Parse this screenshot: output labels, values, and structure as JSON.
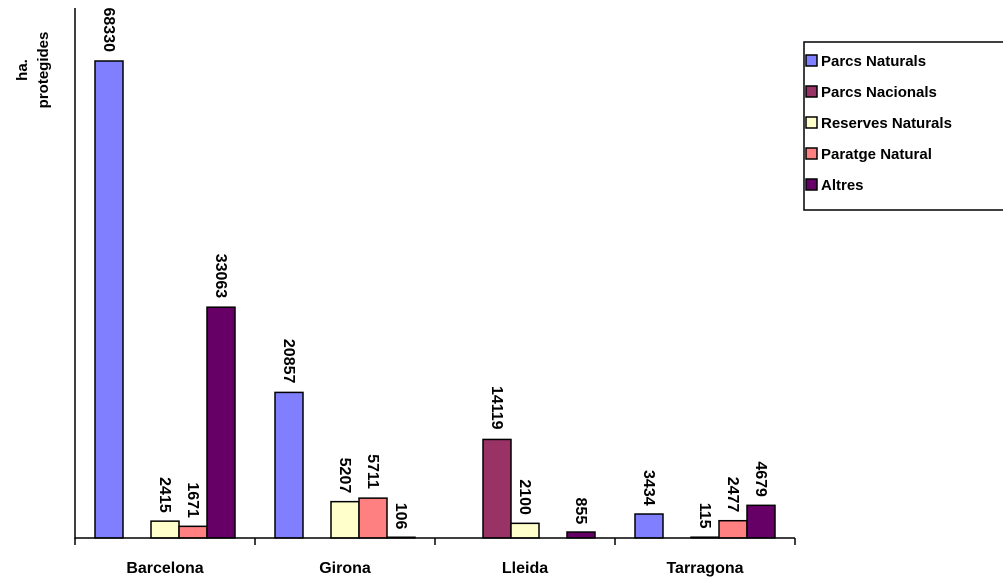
{
  "chart_data": {
    "type": "bar",
    "ylabel": "ha. protegides",
    "ylabel_lines": [
      "ha.",
      "protegides"
    ],
    "categories": [
      "Barcelona",
      "Girona",
      "Lleida",
      "Tarragona"
    ],
    "series": [
      {
        "name": "Parcs Naturals",
        "color": "#7f7fff",
        "values": [
          68330,
          20857,
          null,
          3434
        ],
        "labels": [
          "68330",
          "20857",
          "",
          "3434"
        ]
      },
      {
        "name": "Parcs Nacionals",
        "color": "#993366",
        "values": [
          null,
          null,
          14119,
          null
        ],
        "labels": [
          "",
          "",
          "14119",
          ""
        ]
      },
      {
        "name": "Reserves Naturals",
        "color": "#ffffcc",
        "values": [
          2415,
          5207,
          2100,
          115
        ],
        "labels": [
          "2415",
          "5207",
          "2100",
          "115"
        ]
      },
      {
        "name": "Paratge Natural",
        "color": "#ff8080",
        "values": [
          1671,
          5711,
          null,
          2477
        ],
        "labels": [
          "1671",
          "5711",
          "",
          "2477"
        ]
      },
      {
        "name": "Altres",
        "color": "#660066",
        "values": [
          33063,
          106,
          855,
          4679
        ],
        "labels": [
          "33063",
          "106",
          "855",
          "4679"
        ]
      }
    ],
    "legend_position": "top-right",
    "grid": false,
    "label_orientation": "vertical"
  }
}
